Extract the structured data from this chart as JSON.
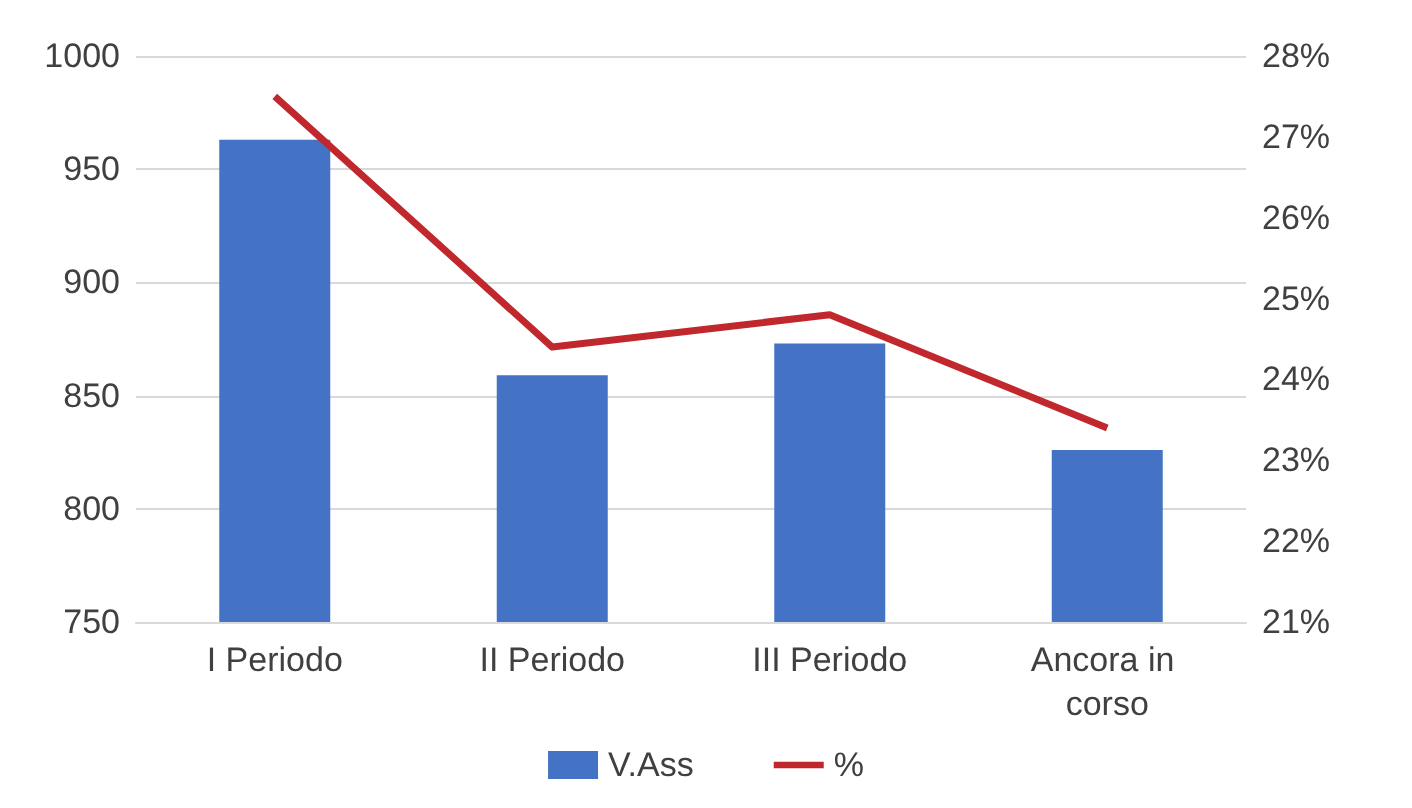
{
  "chart_data": {
    "type": "bar",
    "categories": [
      "I Periodo",
      "II Periodo",
      "III Periodo",
      "Ancora in corso"
    ],
    "series": [
      {
        "name": "V.Ass",
        "color": "#4472c4",
        "values": [
          963,
          859,
          873,
          826
        ]
      },
      {
        "name": "%",
        "type": "line",
        "axis": "y2",
        "color": "#c0282d",
        "values": [
          27.5,
          24.4,
          24.8,
          23.4
        ]
      }
    ],
    "ylim": [
      750,
      1000
    ],
    "yticks": [
      750,
      800,
      850,
      900,
      950,
      1000
    ],
    "y2lim": [
      21,
      28
    ],
    "y2ticks": [
      {
        "value": 21,
        "label": "21%"
      },
      {
        "value": 22,
        "label": "22%"
      },
      {
        "value": 23,
        "label": "23%"
      },
      {
        "value": 24,
        "label": "24%"
      },
      {
        "value": 25,
        "label": "25%"
      },
      {
        "value": 26,
        "label": "26%"
      },
      {
        "value": 27,
        "label": "27%"
      },
      {
        "value": 28,
        "label": "28%"
      }
    ],
    "grid": "y",
    "legend": "bottom",
    "marker": "none"
  }
}
